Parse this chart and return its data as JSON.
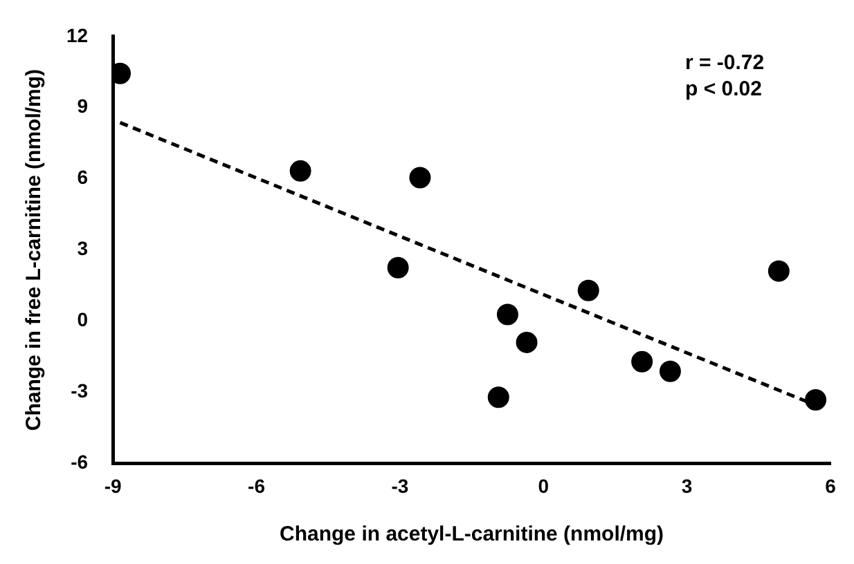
{
  "chart_data": {
    "type": "scatter",
    "xlabel": "Change in acetyl-L-carnitine (nmol/mg)",
    "ylabel": "Change in free L-carnitine (nmol/mg)",
    "annotations": [
      "r = -0.72",
      "p < 0.02"
    ],
    "xlim": [
      -9,
      6
    ],
    "xticks": [
      -9,
      -6,
      -3,
      0,
      3,
      6
    ],
    "ylim": [
      -6,
      12
    ],
    "yticks": [
      -6,
      -3,
      0,
      3,
      6,
      9,
      12
    ],
    "series": [
      {
        "type": "scatter",
        "color": "#000000",
        "marker": "circle",
        "x": [
          -8.85,
          -5.08,
          -2.58,
          -3.04,
          4.92,
          0.94,
          -0.75,
          -0.35,
          2.06,
          2.65,
          -0.94,
          5.69
        ],
        "values": [
          10.44,
          6.33,
          6.05,
          2.25,
          2.11,
          1.29,
          0.28,
          -0.9,
          -1.71,
          -2.12,
          -3.21,
          -3.32
        ]
      },
      {
        "type": "line",
        "color": "#000000",
        "marker": "none",
        "line_style": "dashed",
        "x": [
          -8.85,
          5.89
        ],
        "values": [
          8.37,
          -3.71
        ]
      }
    ]
  }
}
